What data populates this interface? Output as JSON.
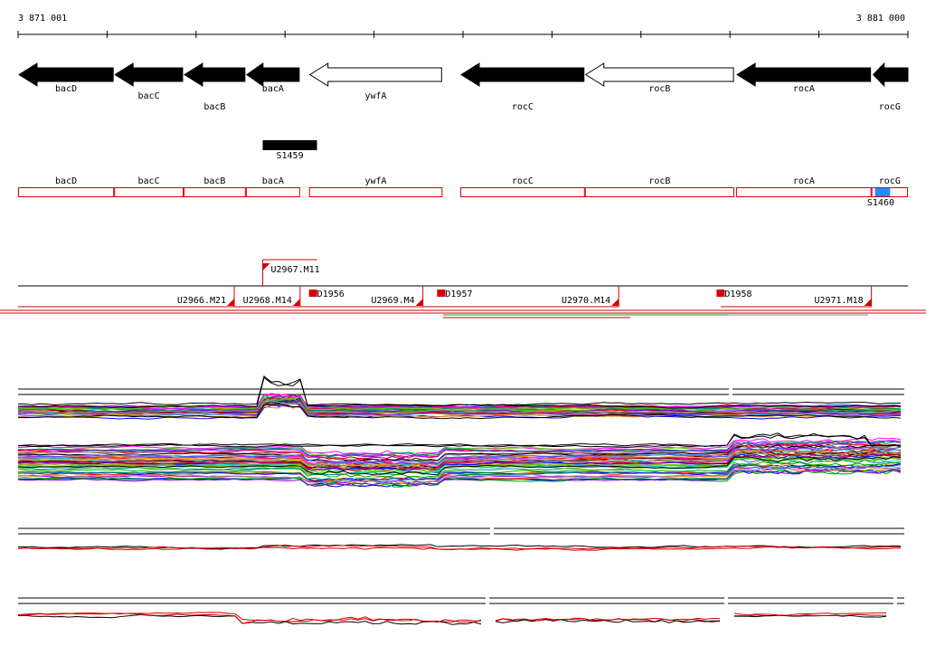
{
  "ruler": {
    "start_label": "3 871 001",
    "end_label": "3 881 000",
    "start": 3871001,
    "end": 3881000
  },
  "genes": [
    {
      "name": "bacD",
      "start": 3871001,
      "end": 3872080,
      "strand": "-",
      "filled": true,
      "label_row": 0
    },
    {
      "name": "bacC",
      "start": 3872080,
      "end": 3872860,
      "strand": "-",
      "filled": true,
      "label_row": 1
    },
    {
      "name": "bacB",
      "start": 3872860,
      "end": 3873560,
      "strand": "-",
      "filled": true,
      "label_row": 2
    },
    {
      "name": "bacA",
      "start": 3873560,
      "end": 3874170,
      "strand": "-",
      "filled": true,
      "label_row": 0
    },
    {
      "name": "ywfA",
      "start": 3874270,
      "end": 3875770,
      "strand": "-",
      "filled": false,
      "label_row": 1
    },
    {
      "name": "rocC",
      "start": 3875970,
      "end": 3877370,
      "strand": "-",
      "filled": true,
      "label_row": 2
    },
    {
      "name": "rocB",
      "start": 3877370,
      "end": 3879050,
      "strand": "-",
      "filled": false,
      "label_row": 0
    },
    {
      "name": "rocA",
      "start": 3879070,
      "end": 3880590,
      "strand": "-",
      "filled": true,
      "label_row": 0
    },
    {
      "name": "rocG",
      "start": 3880590,
      "end": 3881000,
      "strand": "-",
      "filled": true,
      "label_row": 2,
      "truncated": true
    }
  ],
  "segment_feature": {
    "name": "S1459",
    "start": 3873750,
    "end": 3874360
  },
  "gene_boxes": [
    {
      "name": "bacD",
      "start": 3871001,
      "end": 3872080
    },
    {
      "name": "bacC",
      "start": 3872080,
      "end": 3872860
    },
    {
      "name": "bacB",
      "start": 3872860,
      "end": 3873560
    },
    {
      "name": "bacA",
      "start": 3873560,
      "end": 3874170
    },
    {
      "name": "ywfA",
      "start": 3874270,
      "end": 3875770
    },
    {
      "name": "rocC",
      "start": 3875970,
      "end": 3877370
    },
    {
      "name": "rocB",
      "start": 3877370,
      "end": 3879050
    },
    {
      "name": "rocA",
      "start": 3879070,
      "end": 3880590
    },
    {
      "name": "rocG",
      "start": 3880590,
      "end": 3881000
    }
  ],
  "s1460": {
    "name": "S1460",
    "start": 3880630,
    "end": 3880800
  },
  "transcripts": [
    {
      "name": "U2967.M11",
      "start": 3873750,
      "end": 3874360,
      "row": "upper"
    },
    {
      "name": "U2966.M21",
      "start": 3871001,
      "end": 3873430,
      "row": "lower"
    },
    {
      "name": "U2968.M14",
      "start": 3873430,
      "end": 3874170,
      "row": "lower"
    },
    {
      "name": "U2969.M4",
      "start": 3874170,
      "end": 3875550,
      "row": "lower"
    },
    {
      "name": "U2970.M14",
      "start": 3875550,
      "end": 3877750,
      "row": "lower"
    },
    {
      "name": "U2971.M18",
      "start": 3878900,
      "end": 3880590,
      "row": "lower"
    }
  ],
  "terminators": [
    {
      "name": "D1956",
      "pos": 3874280
    },
    {
      "name": "D1957",
      "pos": 3875720
    },
    {
      "name": "D1958",
      "pos": 3878860
    }
  ]
}
